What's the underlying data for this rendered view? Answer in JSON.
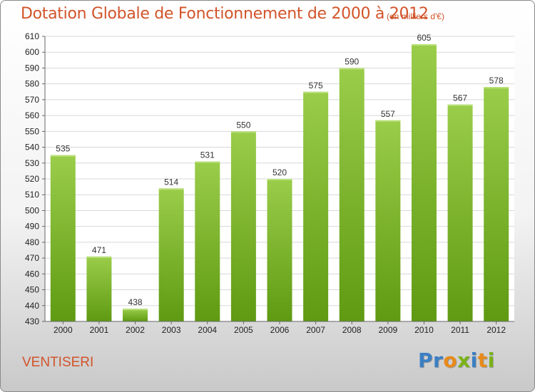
{
  "title": "Dotation Globale de Fonctionnement de 2000 à 2012",
  "unit_note": "(en milliers d'€)",
  "commune": "VENTISERI",
  "logo": {
    "letters": [
      {
        "char": "P",
        "color": "#3b7fc4"
      },
      {
        "char": "r",
        "color": "#3b7fc4"
      },
      {
        "char": "o",
        "color": "#e88a1a"
      },
      {
        "char": "x",
        "color": "#7ab317"
      },
      {
        "char": "i",
        "color": "#3b7fc4"
      },
      {
        "char": "t",
        "color": "#e88a1a"
      },
      {
        "char": "i",
        "color": "#7ab317"
      }
    ]
  },
  "colors": {
    "accent": "#d2542a",
    "bar_top": "#9acd4a",
    "bar_bottom": "#5f9a12",
    "grid": "#d8d8d8",
    "plot_bg": "#ffffff"
  },
  "chart_data": {
    "type": "bar",
    "categories": [
      "2000",
      "2001",
      "2002",
      "2003",
      "2004",
      "2005",
      "2006",
      "2007",
      "2008",
      "2009",
      "2010",
      "2011",
      "2012"
    ],
    "values": [
      535,
      471,
      438,
      514,
      531,
      550,
      520,
      575,
      590,
      557,
      605,
      567,
      578
    ],
    "ylim": [
      430,
      610
    ],
    "yticks": [
      430,
      440,
      450,
      460,
      470,
      480,
      490,
      500,
      510,
      520,
      530,
      540,
      550,
      560,
      570,
      580,
      590,
      600,
      610
    ],
    "grid": true
  }
}
